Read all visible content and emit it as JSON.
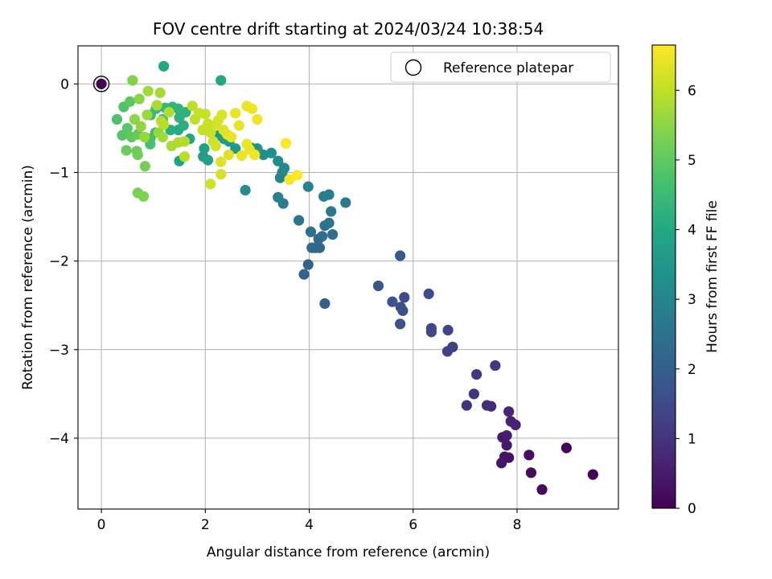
{
  "chart_data": {
    "type": "scatter",
    "title": "FOV centre drift starting at 2024/03/24 10:38:54",
    "xlabel": "Angular distance from reference (arcmin)",
    "ylabel": "Rotation from reference (arcmin)",
    "xlim": [
      -0.45,
      9.95
    ],
    "ylim": [
      -4.8,
      0.43
    ],
    "xticks": [
      0,
      2,
      4,
      6,
      8
    ],
    "yticks": [
      0,
      -1,
      -2,
      -3,
      -4
    ],
    "xtick_labels": [
      "0",
      "2",
      "4",
      "6",
      "8"
    ],
    "ytick_labels": [
      "0",
      "−1",
      "−2",
      "−3",
      "−4"
    ],
    "grid": true,
    "legend": {
      "position": "top-right",
      "label": "Reference platepar"
    },
    "colormap": "viridis",
    "colorbar": {
      "label": "Hours from first FF file",
      "min": 0,
      "max": 6.65,
      "ticks": [
        0,
        1,
        2,
        3,
        4,
        5,
        6
      ],
      "tick_labels": [
        "0",
        "1",
        "2",
        "3",
        "4",
        "5",
        "6"
      ]
    },
    "reference_point": {
      "x": 0,
      "y": 0
    },
    "points": [
      {
        "x": 9.46,
        "y": -4.41,
        "t": 0.05
      },
      {
        "x": 8.95,
        "y": -4.11,
        "t": 0.1
      },
      {
        "x": 8.48,
        "y": -4.58,
        "t": 0.15
      },
      {
        "x": 8.27,
        "y": -4.39,
        "t": 0.2
      },
      {
        "x": 8.23,
        "y": -4.19,
        "t": 0.25
      },
      {
        "x": 7.84,
        "y": -4.22,
        "t": 0.3
      },
      {
        "x": 7.76,
        "y": -4.21,
        "t": 0.35
      },
      {
        "x": 7.7,
        "y": -4.28,
        "t": 0.4
      },
      {
        "x": 7.8,
        "y": -4.08,
        "t": 0.45
      },
      {
        "x": 7.72,
        "y": -3.99,
        "t": 0.5
      },
      {
        "x": 7.8,
        "y": -3.97,
        "t": 0.55
      },
      {
        "x": 7.97,
        "y": -3.85,
        "t": 0.6
      },
      {
        "x": 7.88,
        "y": -3.81,
        "t": 0.65
      },
      {
        "x": 7.84,
        "y": -3.7,
        "t": 0.7
      },
      {
        "x": 7.5,
        "y": -3.64,
        "t": 0.8
      },
      {
        "x": 7.42,
        "y": -3.63,
        "t": 0.85
      },
      {
        "x": 7.03,
        "y": -3.63,
        "t": 0.9
      },
      {
        "x": 7.17,
        "y": -3.5,
        "t": 1.0
      },
      {
        "x": 7.22,
        "y": -3.28,
        "t": 1.1
      },
      {
        "x": 7.58,
        "y": -3.18,
        "t": 1.15
      },
      {
        "x": 6.76,
        "y": -2.97,
        "t": 1.25
      },
      {
        "x": 6.66,
        "y": -3.02,
        "t": 1.3
      },
      {
        "x": 6.67,
        "y": -2.78,
        "t": 1.35
      },
      {
        "x": 6.35,
        "y": -2.76,
        "t": 1.4
      },
      {
        "x": 6.35,
        "y": -2.8,
        "t": 1.45
      },
      {
        "x": 6.3,
        "y": -2.37,
        "t": 1.5
      },
      {
        "x": 5.83,
        "y": -2.41,
        "t": 1.55
      },
      {
        "x": 5.76,
        "y": -2.52,
        "t": 1.6
      },
      {
        "x": 5.8,
        "y": -2.56,
        "t": 1.65
      },
      {
        "x": 5.75,
        "y": -2.71,
        "t": 1.7
      },
      {
        "x": 5.6,
        "y": -2.46,
        "t": 1.75
      },
      {
        "x": 5.33,
        "y": -2.28,
        "t": 1.8
      },
      {
        "x": 5.75,
        "y": -1.94,
        "t": 1.85
      },
      {
        "x": 4.3,
        "y": -2.48,
        "t": 2.0
      },
      {
        "x": 3.9,
        "y": -2.15,
        "t": 2.05
      },
      {
        "x": 3.98,
        "y": -2.04,
        "t": 2.1
      },
      {
        "x": 4.12,
        "y": -1.85,
        "t": 2.15
      },
      {
        "x": 4.2,
        "y": -1.85,
        "t": 2.2
      },
      {
        "x": 4.05,
        "y": -1.85,
        "t": 2.25
      },
      {
        "x": 4.18,
        "y": -1.75,
        "t": 2.3
      },
      {
        "x": 4.25,
        "y": -1.72,
        "t": 2.35
      },
      {
        "x": 4.45,
        "y": -1.7,
        "t": 2.4
      },
      {
        "x": 4.03,
        "y": -1.67,
        "t": 2.45
      },
      {
        "x": 4.3,
        "y": -1.6,
        "t": 2.5
      },
      {
        "x": 4.38,
        "y": -1.57,
        "t": 2.55
      },
      {
        "x": 3.8,
        "y": -1.54,
        "t": 2.6
      },
      {
        "x": 4.42,
        "y": -1.44,
        "t": 2.65
      },
      {
        "x": 4.7,
        "y": -1.34,
        "t": 2.7
      },
      {
        "x": 3.5,
        "y": -1.35,
        "t": 2.75
      },
      {
        "x": 4.28,
        "y": -1.27,
        "t": 2.8
      },
      {
        "x": 4.38,
        "y": -1.25,
        "t": 2.85
      },
      {
        "x": 3.4,
        "y": -1.28,
        "t": 2.9
      },
      {
        "x": 3.98,
        "y": -1.16,
        "t": 2.95
      },
      {
        "x": 3.44,
        "y": -1.06,
        "t": 3.0
      },
      {
        "x": 3.48,
        "y": -1.0,
        "t": 3.05
      },
      {
        "x": 3.52,
        "y": -0.95,
        "t": 3.1
      },
      {
        "x": 3.4,
        "y": -0.87,
        "t": 3.15
      },
      {
        "x": 2.77,
        "y": -1.2,
        "t": 3.2
      },
      {
        "x": 3.12,
        "y": -0.8,
        "t": 3.25
      },
      {
        "x": 3.27,
        "y": -0.78,
        "t": 3.3
      },
      {
        "x": 2.98,
        "y": -0.78,
        "t": 3.35
      },
      {
        "x": 3.0,
        "y": -0.73,
        "t": 3.4
      },
      {
        "x": 2.88,
        "y": -0.72,
        "t": 3.45
      },
      {
        "x": 2.58,
        "y": -0.73,
        "t": 3.5
      },
      {
        "x": 2.46,
        "y": -0.65,
        "t": 3.55
      },
      {
        "x": 2.36,
        "y": -0.62,
        "t": 3.6
      },
      {
        "x": 2.26,
        "y": -0.58,
        "t": 3.65
      },
      {
        "x": 1.96,
        "y": -0.82,
        "t": 3.7
      },
      {
        "x": 1.98,
        "y": -0.73,
        "t": 3.75
      },
      {
        "x": 2.05,
        "y": -0.86,
        "t": 3.8
      },
      {
        "x": 1.5,
        "y": -0.87,
        "t": 3.85
      },
      {
        "x": 1.7,
        "y": -0.62,
        "t": 3.9
      },
      {
        "x": 2.3,
        "y": 0.04,
        "t": 3.95
      },
      {
        "x": 1.2,
        "y": 0.2,
        "t": 4.0
      },
      {
        "x": 1.48,
        "y": -0.52,
        "t": 4.05
      },
      {
        "x": 1.33,
        "y": -0.52,
        "t": 4.1
      },
      {
        "x": 1.58,
        "y": -0.47,
        "t": 4.15
      },
      {
        "x": 1.5,
        "y": -0.38,
        "t": 4.2
      },
      {
        "x": 1.62,
        "y": -0.32,
        "t": 4.25
      },
      {
        "x": 1.48,
        "y": -0.28,
        "t": 4.3
      },
      {
        "x": 1.37,
        "y": -0.26,
        "t": 4.35
      },
      {
        "x": 1.23,
        "y": -0.27,
        "t": 4.4
      },
      {
        "x": 1.05,
        "y": -0.28,
        "t": 4.45
      },
      {
        "x": 1.18,
        "y": -0.4,
        "t": 4.5
      },
      {
        "x": 0.95,
        "y": -0.35,
        "t": 4.55
      },
      {
        "x": 1.04,
        "y": -0.55,
        "t": 4.6
      },
      {
        "x": 0.94,
        "y": -0.62,
        "t": 4.65
      },
      {
        "x": 0.94,
        "y": -0.68,
        "t": 4.7
      },
      {
        "x": 0.3,
        "y": -0.4,
        "t": 4.75
      },
      {
        "x": 0.43,
        "y": -0.26,
        "t": 4.8
      },
      {
        "x": 0.4,
        "y": -0.58,
        "t": 4.85
      },
      {
        "x": 0.5,
        "y": -0.5,
        "t": 4.9
      },
      {
        "x": 0.55,
        "y": -0.2,
        "t": 4.95
      },
      {
        "x": 0.58,
        "y": -0.6,
        "t": 5.0
      },
      {
        "x": 0.7,
        "y": -0.57,
        "t": 5.05
      },
      {
        "x": 0.48,
        "y": -0.75,
        "t": 5.1
      },
      {
        "x": 0.68,
        "y": -0.76,
        "t": 5.15
      },
      {
        "x": 0.7,
        "y": -0.8,
        "t": 5.2
      },
      {
        "x": 0.84,
        "y": -0.93,
        "t": 5.25
      },
      {
        "x": 0.7,
        "y": -1.23,
        "t": 5.3
      },
      {
        "x": 0.81,
        "y": -1.27,
        "t": 5.35
      },
      {
        "x": 0.6,
        "y": 0.04,
        "t": 5.4
      },
      {
        "x": 0.73,
        "y": -0.17,
        "t": 5.45
      },
      {
        "x": 0.64,
        "y": -0.4,
        "t": 5.5
      },
      {
        "x": 0.76,
        "y": -0.48,
        "t": 5.55
      },
      {
        "x": 0.83,
        "y": -0.6,
        "t": 5.6
      },
      {
        "x": 0.88,
        "y": -0.35,
        "t": 5.65
      },
      {
        "x": 0.9,
        "y": -0.08,
        "t": 5.7
      },
      {
        "x": 1.13,
        "y": -0.1,
        "t": 5.75
      },
      {
        "x": 1.07,
        "y": -0.24,
        "t": 5.8
      },
      {
        "x": 1.3,
        "y": -0.32,
        "t": 5.85
      },
      {
        "x": 1.15,
        "y": -0.42,
        "t": 5.9
      },
      {
        "x": 1.2,
        "y": -0.46,
        "t": 5.95
      },
      {
        "x": 1.1,
        "y": -0.55,
        "t": 5.6
      },
      {
        "x": 1.18,
        "y": -0.6,
        "t": 5.7
      },
      {
        "x": 1.35,
        "y": -0.7,
        "t": 5.8
      },
      {
        "x": 1.48,
        "y": -0.66,
        "t": 5.85
      },
      {
        "x": 1.6,
        "y": -0.65,
        "t": 5.9
      },
      {
        "x": 1.6,
        "y": -0.82,
        "t": 5.95
      },
      {
        "x": 1.75,
        "y": -0.25,
        "t": 6.0
      },
      {
        "x": 1.8,
        "y": -0.4,
        "t": 6.0
      },
      {
        "x": 1.88,
        "y": -0.33,
        "t": 6.05
      },
      {
        "x": 1.95,
        "y": -0.52,
        "t": 6.05
      },
      {
        "x": 2.0,
        "y": -0.34,
        "t": 6.1
      },
      {
        "x": 2.05,
        "y": -0.45,
        "t": 6.1
      },
      {
        "x": 2.1,
        "y": -0.55,
        "t": 6.1
      },
      {
        "x": 2.1,
        "y": -1.13,
        "t": 6.15
      },
      {
        "x": 2.15,
        "y": -0.65,
        "t": 6.15
      },
      {
        "x": 2.2,
        "y": -0.7,
        "t": 6.2
      },
      {
        "x": 2.2,
        "y": -0.46,
        "t": 6.2
      },
      {
        "x": 2.25,
        "y": -0.41,
        "t": 6.25
      },
      {
        "x": 2.3,
        "y": -1.02,
        "t": 6.25
      },
      {
        "x": 2.3,
        "y": -0.88,
        "t": 6.3
      },
      {
        "x": 2.32,
        "y": -0.35,
        "t": 6.3
      },
      {
        "x": 2.35,
        "y": -0.52,
        "t": 6.3
      },
      {
        "x": 2.42,
        "y": -0.57,
        "t": 6.35
      },
      {
        "x": 2.45,
        "y": -0.8,
        "t": 6.35
      },
      {
        "x": 2.5,
        "y": -0.6,
        "t": 6.4
      },
      {
        "x": 2.58,
        "y": -0.33,
        "t": 6.4
      },
      {
        "x": 2.65,
        "y": -0.47,
        "t": 6.4
      },
      {
        "x": 2.7,
        "y": -0.81,
        "t": 6.45
      },
      {
        "x": 2.8,
        "y": -0.25,
        "t": 6.45
      },
      {
        "x": 2.8,
        "y": -0.68,
        "t": 6.45
      },
      {
        "x": 2.85,
        "y": -0.74,
        "t": 6.5
      },
      {
        "x": 2.9,
        "y": -0.28,
        "t": 6.5
      },
      {
        "x": 2.95,
        "y": -0.8,
        "t": 6.5
      },
      {
        "x": 3.0,
        "y": -0.4,
        "t": 6.5
      },
      {
        "x": 3.55,
        "y": -0.67,
        "t": 6.62
      },
      {
        "x": 3.62,
        "y": -1.08,
        "t": 6.58
      },
      {
        "x": 3.77,
        "y": -1.03,
        "t": 6.62
      }
    ]
  }
}
